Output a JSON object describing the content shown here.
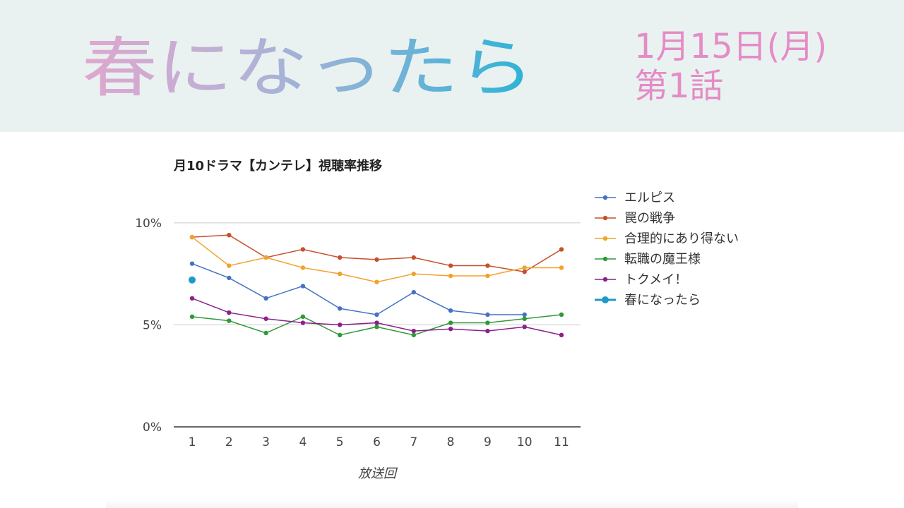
{
  "header": {
    "title": "春になったら",
    "date": "1月15日(月)",
    "episode": "第1話"
  },
  "colors": {
    "banner_bg": "#e9f2f1",
    "title_gradient": [
      "#e0a6ce",
      "#b9b1d6",
      "#7eb3d6",
      "#2ab3d6"
    ],
    "header_pink": "#e58cc6"
  },
  "chart_data": {
    "type": "line",
    "title": "月10ドラマ【カンテレ】視聴率推移",
    "xlabel": "放送回",
    "ylabel": "",
    "x": [
      1,
      2,
      3,
      4,
      5,
      6,
      7,
      8,
      9,
      10,
      11
    ],
    "x_tick_labels": [
      "1",
      "2",
      "3",
      "4",
      "5",
      "6",
      "7",
      "8",
      "9",
      "10",
      "11"
    ],
    "ylim": [
      0,
      12
    ],
    "y_ticks": [
      0,
      5,
      10
    ],
    "y_tick_labels": [
      "0%",
      "5%",
      "10%"
    ],
    "grid": true,
    "legend_position": "right",
    "series": [
      {
        "name": "エルピス",
        "color": "#4472c4",
        "values": [
          8.0,
          7.3,
          6.3,
          6.9,
          5.8,
          5.5,
          6.6,
          5.7,
          5.5,
          5.5,
          null
        ]
      },
      {
        "name": "罠の戦争",
        "color": "#c5512b",
        "values": [
          9.3,
          9.4,
          8.3,
          8.7,
          8.3,
          8.2,
          8.3,
          7.9,
          7.9,
          7.6,
          8.7
        ]
      },
      {
        "name": "合理的にあり得ない",
        "color": "#f2a22b",
        "values": [
          9.3,
          7.9,
          8.3,
          7.8,
          7.5,
          7.1,
          7.5,
          7.4,
          7.4,
          7.8,
          7.8
        ]
      },
      {
        "name": "転職の魔王様",
        "color": "#2e9a36",
        "values": [
          5.4,
          5.2,
          4.6,
          5.4,
          4.5,
          4.9,
          4.5,
          5.1,
          5.1,
          5.3,
          5.5
        ]
      },
      {
        "name": "トクメイ！",
        "color": "#8c1f8c",
        "values": [
          6.3,
          5.6,
          5.3,
          5.1,
          5.0,
          5.1,
          4.7,
          4.8,
          4.7,
          4.9,
          4.5
        ]
      },
      {
        "name": "春になったら",
        "color": "#1e9ac8",
        "values": [
          7.2,
          null,
          null,
          null,
          null,
          null,
          null,
          null,
          null,
          null,
          null
        ]
      }
    ]
  }
}
